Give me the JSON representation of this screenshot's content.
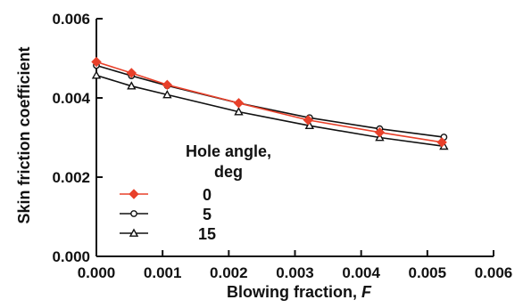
{
  "chart_data": {
    "type": "line",
    "xlabel": "Blowing fraction, ",
    "xlabel_var": "F",
    "ylabel": "Skin friction coefficient",
    "xlim": [
      0,
      0.006
    ],
    "ylim": [
      0,
      0.006
    ],
    "x_ticks": [
      "0.000",
      "0.001",
      "0.002",
      "0.003",
      "0.004",
      "0.005",
      "0.006"
    ],
    "y_ticks": [
      "0.000",
      "0.002",
      "0.004",
      "0.006"
    ],
    "grid": false,
    "legend": {
      "title_line1": "Hole angle,",
      "title_line2": "deg",
      "placement": "bottom-left"
    },
    "series": [
      {
        "name": "0",
        "color": "#e8402a",
        "marker": "diamond-filled",
        "x": [
          0.0,
          0.00053,
          0.00107,
          0.00215,
          0.0032,
          0.00428,
          0.00522
        ],
        "y": [
          0.00491,
          0.00463,
          0.00433,
          0.00387,
          0.00344,
          0.00313,
          0.00288
        ]
      },
      {
        "name": "5",
        "color": "#111111",
        "marker": "circle-open",
        "x": [
          0.0,
          0.00053,
          0.00107,
          0.00215,
          0.00322,
          0.00428,
          0.00525
        ],
        "y": [
          0.00482,
          0.00456,
          0.00431,
          0.00387,
          0.0035,
          0.00322,
          0.00301
        ]
      },
      {
        "name": "15",
        "color": "#111111",
        "marker": "triangle-open",
        "x": [
          0.0,
          0.00053,
          0.00107,
          0.00215,
          0.00322,
          0.00428,
          0.00525
        ],
        "y": [
          0.00457,
          0.0043,
          0.00408,
          0.00365,
          0.0033,
          0.003,
          0.00278
        ]
      }
    ]
  }
}
